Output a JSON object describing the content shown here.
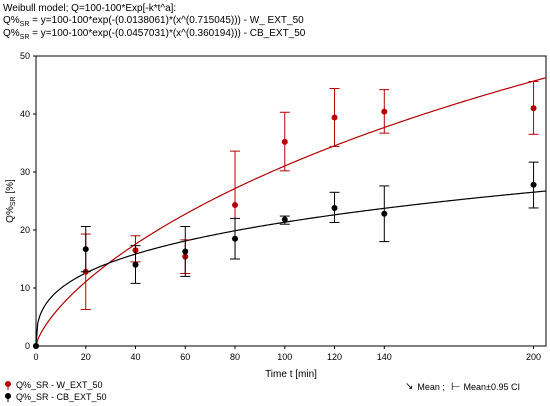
{
  "header": {
    "line1": "Weibull model; Q=100-100*Exp[-k*t^a]:",
    "line2_prefix": "Q%",
    "line2_sub": "SR",
    "line2_rest": " = y=100-100*exp(-(0.0138061)*(x^(0.715045))) - W_ EXT_50",
    "line3_prefix": "Q%",
    "line3_sub": "SR",
    "line3_rest": " = y=100-100*exp(-(0.0457031)*(x^(0.360194))) - CB_EXT_50"
  },
  "legend": {
    "series1": "Q%_SR - W_EXT_50",
    "series2": "Q%_SR - CB_EXT_50",
    "mean": "Mean ;",
    "ci": "Mean±0.95 CI"
  },
  "chart_data": {
    "type": "scatter",
    "xlabel": "Time t [min]",
    "ylabel_main": "Q%",
    "ylabel_sub": "SR",
    "ylabel_unit": " [%]",
    "xlim": [
      0,
      205
    ],
    "ylim": [
      0,
      50
    ],
    "xticks": [
      0,
      20,
      40,
      60,
      80,
      100,
      120,
      140,
      200
    ],
    "yticks": [
      0,
      10,
      20,
      30,
      40,
      50
    ],
    "series": [
      {
        "name": "Q%_SR - W_EXT_50",
        "color": "#b40000",
        "model": {
          "k": 0.0138061,
          "a": 0.715045
        },
        "x": [
          0,
          20,
          40,
          60,
          80,
          100,
          120,
          140,
          200
        ],
        "mean": [
          0,
          12.8,
          16.5,
          15.4,
          24.3,
          35.2,
          39.4,
          40.4,
          41
        ],
        "ci_low": [
          0,
          6.3,
          14.5,
          12.5,
          15,
          30.2,
          34.4,
          36.7,
          36.5
        ],
        "ci_high": [
          0,
          19.3,
          19,
          18.3,
          33.6,
          40.3,
          44.4,
          44.2,
          45.6
        ]
      },
      {
        "name": "Q%_SR - CB_EXT_50",
        "color": "#000000",
        "model": {
          "k": 0.0457031,
          "a": 0.360194
        },
        "x": [
          0,
          20,
          40,
          60,
          80,
          100,
          120,
          140,
          200
        ],
        "mean": [
          0,
          16.7,
          14,
          16.3,
          18.5,
          21.8,
          23.8,
          22.8,
          27.8
        ],
        "ci_low": [
          0,
          12.8,
          10.8,
          12,
          15,
          21,
          21.3,
          18,
          23.8
        ],
        "ci_high": [
          0,
          20.6,
          17.3,
          20.6,
          22,
          22.4,
          26.5,
          27.6,
          31.7
        ]
      }
    ]
  }
}
